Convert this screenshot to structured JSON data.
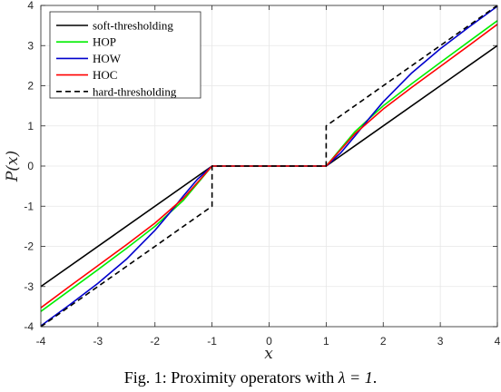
{
  "caption": {
    "prefix": "Fig. 1: Proximity operators with ",
    "math": "λ = 1",
    "suffix": "."
  },
  "chart_data": {
    "type": "line",
    "title": "",
    "xlabel": "x",
    "ylabel": "P(x)",
    "xlim": [
      -4,
      4
    ],
    "ylim": [
      -4,
      4
    ],
    "xticks": [
      -4,
      -3,
      -2,
      -1,
      0,
      1,
      2,
      3,
      4
    ],
    "yticks": [
      -4,
      -3,
      -2,
      -1,
      0,
      1,
      2,
      3,
      4
    ],
    "grid": true,
    "legend_position": "top-left",
    "series": [
      {
        "name": "soft-thresholding",
        "color": "#000000",
        "dash": "solid",
        "x": [
          -4,
          -1,
          1,
          4
        ],
        "y": [
          -3,
          0,
          0,
          3
        ]
      },
      {
        "name": "HOP",
        "color": "#00ee00",
        "dash": "solid",
        "x": [
          -4,
          -3.5,
          -3,
          -2.5,
          -2,
          -1.5,
          -1,
          1,
          1.5,
          2,
          2.5,
          3,
          3.5,
          4
        ],
        "y": [
          -3.62,
          -3.1,
          -2.58,
          -2.05,
          -1.5,
          -0.85,
          0,
          0,
          0.85,
          1.5,
          2.05,
          2.58,
          3.1,
          3.62
        ]
      },
      {
        "name": "HOW",
        "color": "#0000cc",
        "dash": "solid",
        "x": [
          -4,
          -3.5,
          -3,
          -2.5,
          -2,
          -1.75,
          -1.5,
          -1.25,
          -1,
          1,
          1.25,
          1.5,
          1.75,
          2,
          2.5,
          3,
          3.5,
          4
        ],
        "y": [
          -3.98,
          -3.46,
          -2.92,
          -2.32,
          -1.6,
          -1.18,
          -0.74,
          -0.32,
          0,
          0,
          0.32,
          0.74,
          1.18,
          1.6,
          2.32,
          2.92,
          3.46,
          3.98
        ]
      },
      {
        "name": "HOC",
        "color": "#ff0000",
        "dash": "solid",
        "x": [
          -4,
          -3.5,
          -3,
          -2.5,
          -2,
          -1.5,
          -1,
          1,
          1.5,
          2,
          2.5,
          3,
          3.5,
          4
        ],
        "y": [
          -3.53,
          -3.0,
          -2.48,
          -1.96,
          -1.42,
          -0.8,
          0,
          0,
          0.8,
          1.42,
          1.96,
          2.48,
          3.0,
          3.53
        ]
      },
      {
        "name": "hard-thresholding",
        "color": "#000000",
        "dash": "dashed",
        "x": [
          -4,
          -1,
          -1,
          1,
          1,
          4
        ],
        "y": [
          -4,
          -1,
          0,
          0,
          1,
          4
        ]
      }
    ]
  }
}
